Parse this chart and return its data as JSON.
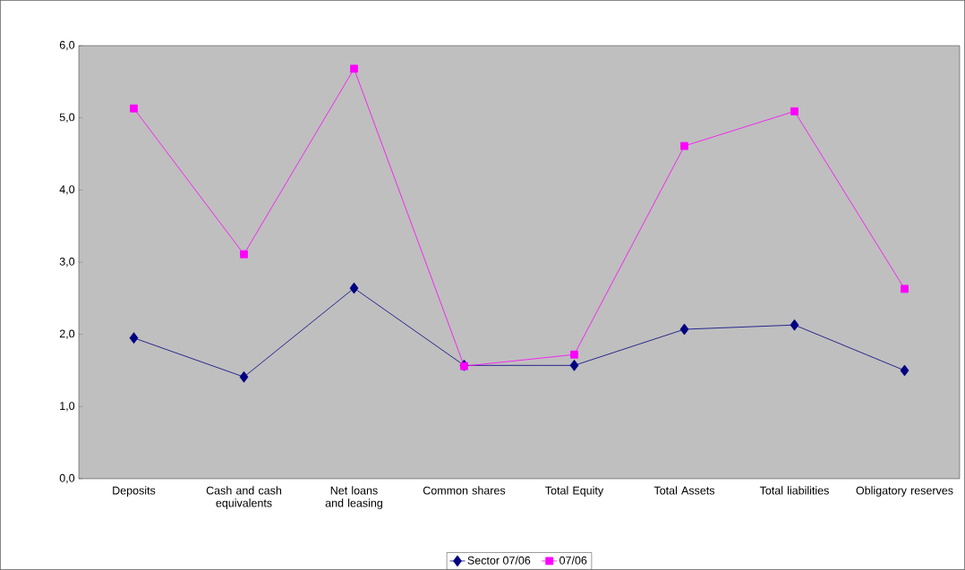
{
  "chart_data": {
    "type": "line",
    "categories": [
      "Deposits",
      "Cash and cash equivalents",
      "Net loans and leasing",
      "Common shares",
      "Total Equity",
      "Total Assets",
      "Total liabilities",
      "Obligatory reserves"
    ],
    "series": [
      {
        "name": "Sector  07/06",
        "color": "#000080",
        "marker": "diamond",
        "values": [
          1.95,
          1.41,
          2.64,
          1.57,
          1.57,
          2.07,
          2.13,
          1.5
        ]
      },
      {
        "name": "07/06",
        "color": "#ff00ff",
        "marker": "square",
        "values": [
          5.13,
          3.11,
          5.68,
          1.56,
          1.72,
          4.61,
          5.09,
          2.63
        ]
      }
    ],
    "ylim": [
      0,
      6
    ],
    "yticks": [
      {
        "value": 0,
        "label": "0,0"
      },
      {
        "value": 1,
        "label": "1,0"
      },
      {
        "value": 2,
        "label": "2,0"
      },
      {
        "value": 3,
        "label": "3,0"
      },
      {
        "value": 4,
        "label": "4,0"
      },
      {
        "value": 5,
        "label": "5,0"
      },
      {
        "value": 6,
        "label": "6,0"
      }
    ],
    "legend": "bottom",
    "grid": false
  }
}
